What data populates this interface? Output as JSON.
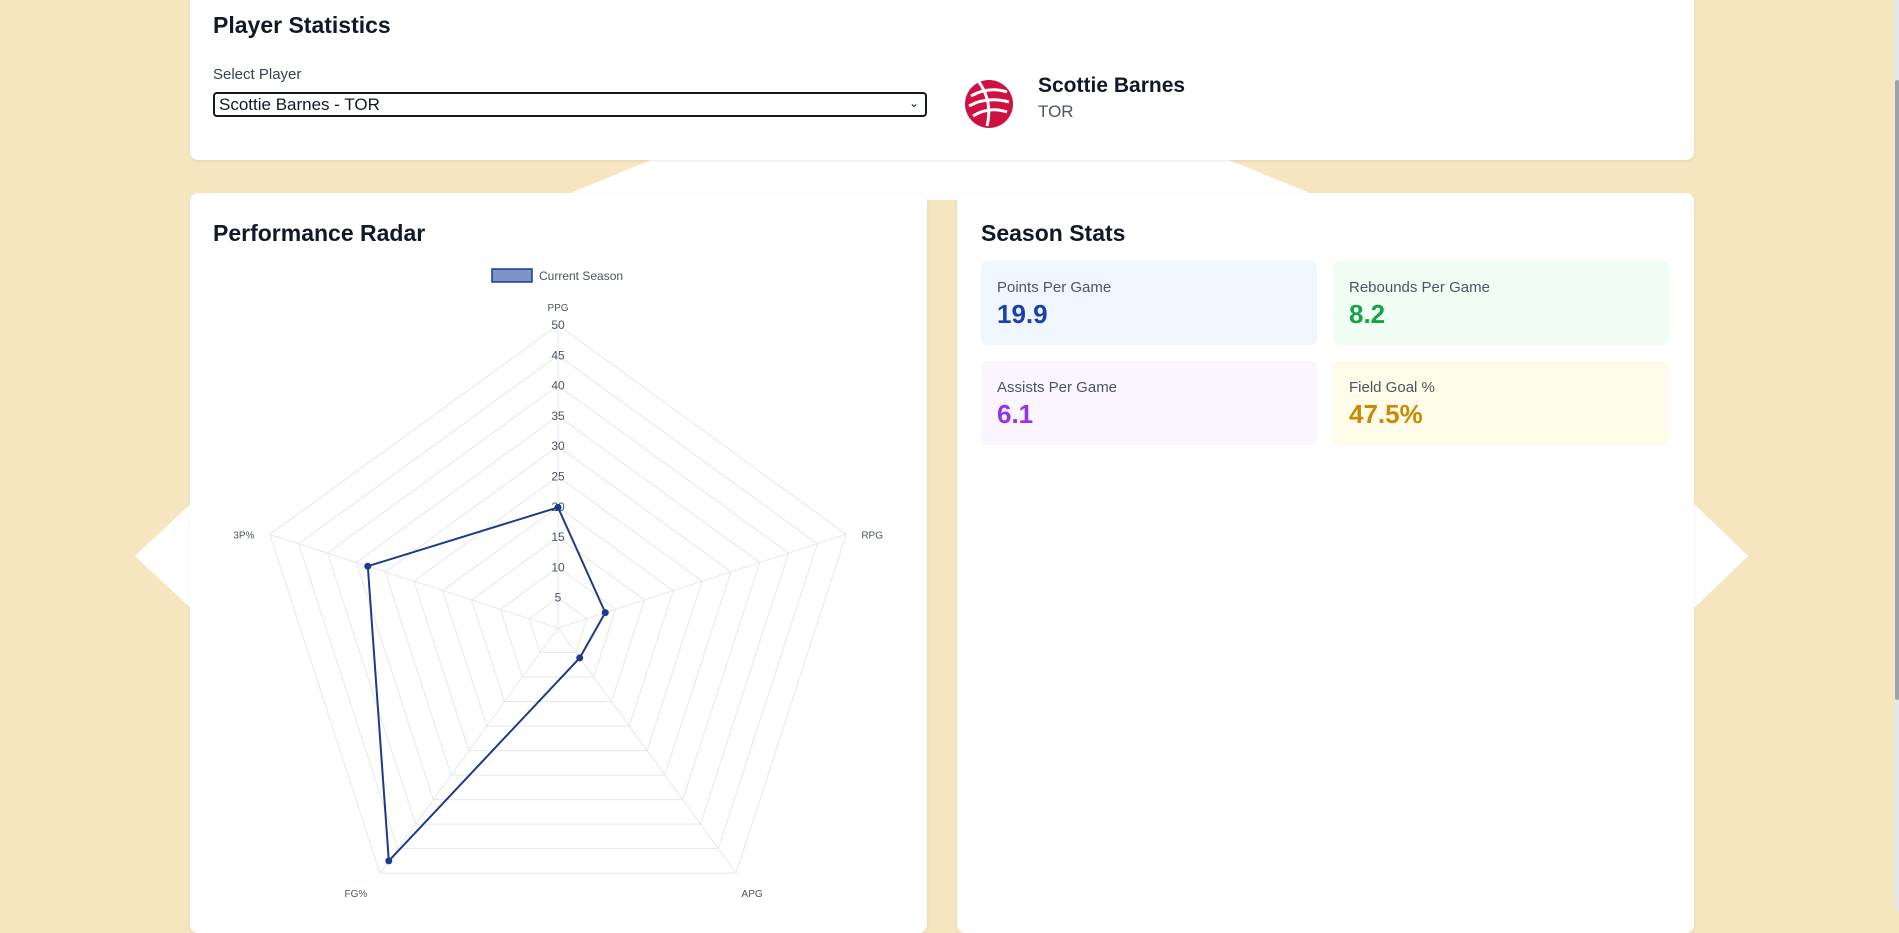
{
  "header": {
    "title": "Player Statistics",
    "select_label": "Select Player",
    "selected_player": "Scottie Barnes - TOR",
    "player_name": "Scottie Barnes",
    "player_team": "TOR",
    "logo": "raptors-logo-icon"
  },
  "radar": {
    "title": "Performance Radar",
    "chart_data": {
      "type": "radar",
      "categories": [
        "PPG",
        "RPG",
        "APG",
        "FG%",
        "3P%"
      ],
      "series": [
        {
          "name": "Current Season",
          "values": [
            19.9,
            8.2,
            6.1,
            47.5,
            33.0
          ]
        }
      ],
      "rlim": [
        0,
        50
      ],
      "ticks": [
        "5",
        "10",
        "15",
        "20",
        "25",
        "30",
        "35",
        "40",
        "45",
        "50"
      ],
      "grid": true,
      "legend": "top-center"
    }
  },
  "stats": {
    "title": "Season Stats",
    "tiles": [
      {
        "label": "Points Per Game",
        "value": "19.9"
      },
      {
        "label": "Rebounds Per Game",
        "value": "8.2"
      },
      {
        "label": "Assists Per Game",
        "value": "6.1"
      },
      {
        "label": "Field Goal %",
        "value": "47.5%"
      }
    ]
  },
  "colors": {
    "background": "#f5e6c0",
    "series_stroke": "#1e3a8a",
    "series_fill": "#7b93c7",
    "ppg_bg": "#eff6ff",
    "ppg_fg": "#1e40af",
    "rpg_bg": "#f0fdf4",
    "rpg_fg": "#16a34a",
    "apg_bg": "#faf5ff",
    "apg_fg": "#9333ea",
    "fg_bg": "#fefce8",
    "fg_fg": "#ca8a04"
  }
}
